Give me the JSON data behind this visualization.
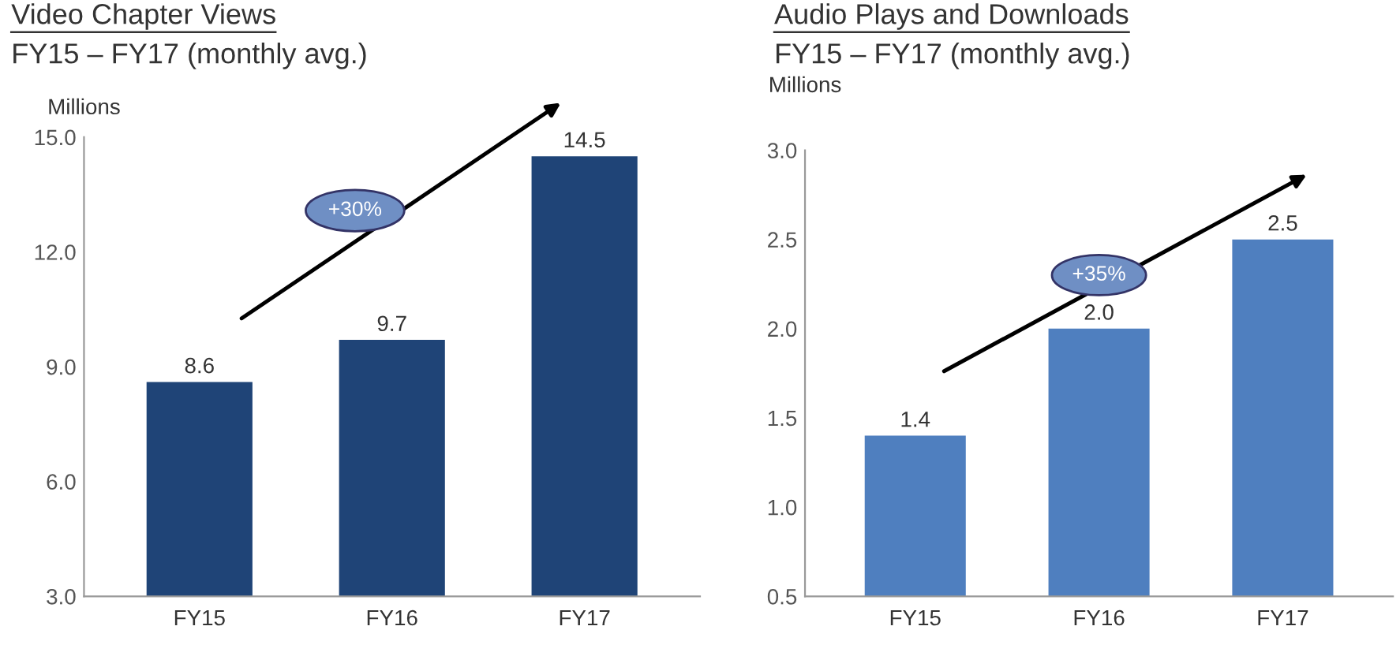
{
  "chart_data": [
    {
      "type": "bar",
      "title": "Video Chapter Views",
      "subtitle": "FY15 – FY17 (monthly avg.)",
      "ylabel": "Millions",
      "categories": [
        "FY15",
        "FY16",
        "FY17"
      ],
      "values": [
        8.6,
        9.7,
        14.5
      ],
      "color": "#1f4477",
      "ylim": [
        3.0,
        15.0
      ],
      "yticks": [
        {
          "value": 3.0,
          "label": "3.0"
        },
        {
          "value": 6.0,
          "label": "6.0"
        },
        {
          "value": 9.0,
          "label": "9.0"
        },
        {
          "value": 12.0,
          "label": "12.0"
        },
        {
          "value": 15.0,
          "label": "15.0"
        }
      ],
      "data_labels": true,
      "grid": false,
      "annotations": [
        "+30%"
      ]
    },
    {
      "type": "bar",
      "title": "Audio Plays and Downloads",
      "subtitle": "FY15 – FY17 (monthly avg.)",
      "ylabel": "Millions",
      "categories": [
        "FY15",
        "FY16",
        "FY17"
      ],
      "values": [
        1.4,
        2.0,
        2.5
      ],
      "value_labels": [
        "1.4",
        "2.0",
        "2.5"
      ],
      "color": "#4f7fbf",
      "ylim": [
        0.5,
        3.0
      ],
      "yticks": [
        {
          "value": 0.5,
          "label": "0.5"
        },
        {
          "value": 1.0,
          "label": "1.0"
        },
        {
          "value": 1.5,
          "label": "1.5"
        },
        {
          "value": 2.0,
          "label": "2.0"
        },
        {
          "value": 2.5,
          "label": "2.5"
        },
        {
          "value": 3.0,
          "label": "3.0"
        }
      ],
      "grid": false,
      "annotations": [
        "+35%"
      ]
    }
  ]
}
